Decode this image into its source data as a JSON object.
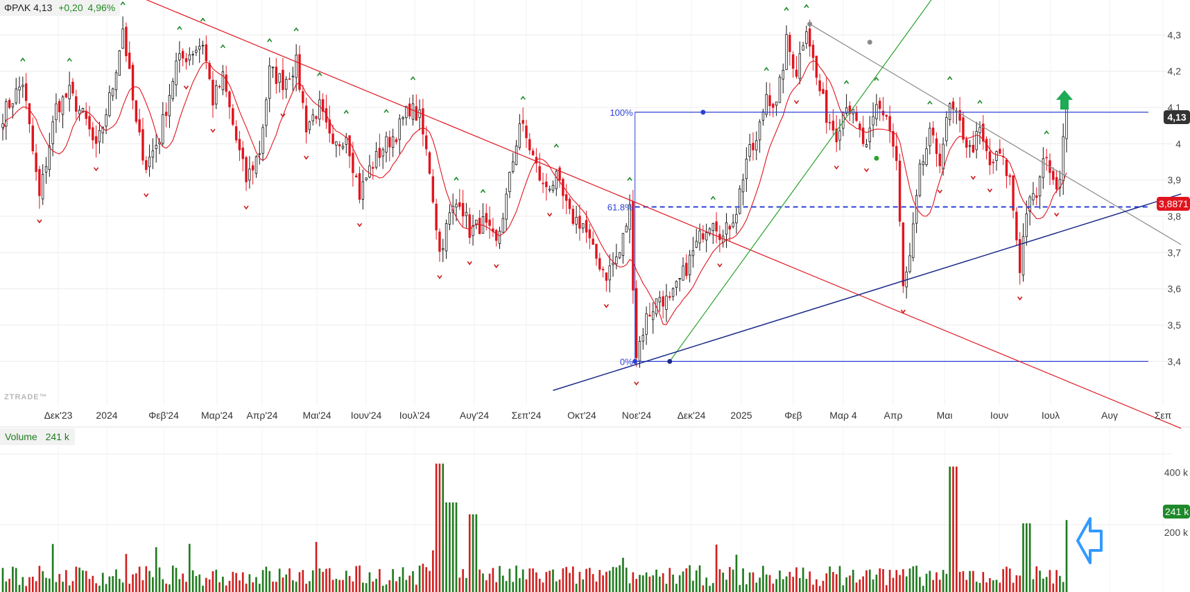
{
  "header": {
    "symbol": "ΦΡΛΚ",
    "last": "4,13",
    "change": "+0,20",
    "change_pct": "4,96%"
  },
  "watermark": "ZTRADE™",
  "volume_panel": {
    "label": "Volume",
    "value": "241 k"
  },
  "colors": {
    "up": "#111111",
    "down": "#e0141e",
    "ma": "#e0141e",
    "fib": "#2b3fd6",
    "support": "#1a2a8a",
    "downtrend": "#e0141e",
    "uptrend": "#2aa12a",
    "resistance": "#8a8a8a",
    "vol_up": "#1f7a1f",
    "vol_down": "#d21e1e",
    "arrow_up": "#1faa55",
    "arrow_hint": "#3399ff"
  },
  "chart_data": [
    {
      "type": "candlestick",
      "title": "",
      "x_tick_labels": [
        "Δεκ'23",
        "2024",
        "Φεβ'24",
        "Μαρ'24",
        "Απρ'24",
        "Μαι'24",
        "Ιουν'24",
        "Ιουλ'24",
        "Αυγ'24",
        "Σεπ'24",
        "Οκτ'24",
        "Νοε'24",
        "Δεκ'24",
        "2025",
        "Φεβ",
        "Μαρ 4",
        "Απρ",
        "Μαι",
        "Ιουν",
        "Ιουλ",
        "Αυγ",
        "Σεπ"
      ],
      "y_tick_labels": [
        "4,3",
        "4,2",
        "4,1",
        "4",
        "3,9",
        "3,8",
        "3,7",
        "3,6",
        "3,5",
        "3,4"
      ],
      "ylim": [
        3.33,
        4.36
      ],
      "price_path": [
        [
          0,
          4.08
        ],
        [
          6,
          4.17
        ],
        [
          11,
          3.85
        ],
        [
          16,
          4.1
        ],
        [
          20,
          4.14
        ],
        [
          25,
          4.06
        ],
        [
          28,
          3.98
        ],
        [
          33,
          4.16
        ],
        [
          36,
          4.32
        ],
        [
          40,
          4.05
        ],
        [
          43,
          3.94
        ],
        [
          47,
          4.02
        ],
        [
          52,
          4.22
        ],
        [
          56,
          4.25
        ],
        [
          60,
          4.28
        ],
        [
          63,
          4.12
        ],
        [
          66,
          4.18
        ],
        [
          70,
          4.01
        ],
        [
          73,
          3.9
        ],
        [
          77,
          3.98
        ],
        [
          80,
          4.2
        ],
        [
          84,
          4.17
        ],
        [
          88,
          4.22
        ],
        [
          91,
          4.05
        ],
        [
          95,
          4.1
        ],
        [
          99,
          3.98
        ],
        [
          103,
          4.03
        ],
        [
          107,
          3.86
        ],
        [
          110,
          3.93
        ],
        [
          114,
          3.99
        ],
        [
          118,
          4.03
        ],
        [
          122,
          4.1
        ],
        [
          125,
          4.07
        ],
        [
          128,
          3.93
        ],
        [
          131,
          3.7
        ],
        [
          134,
          3.8
        ],
        [
          137,
          3.85
        ],
        [
          140,
          3.76
        ],
        [
          144,
          3.78
        ],
        [
          148,
          3.72
        ],
        [
          151,
          3.85
        ],
        [
          155,
          4.06
        ],
        [
          158,
          3.99
        ],
        [
          162,
          3.88
        ],
        [
          166,
          3.9
        ],
        [
          170,
          3.8
        ],
        [
          174,
          3.78
        ],
        [
          177,
          3.7
        ],
        [
          181,
          3.64
        ],
        [
          185,
          3.7
        ],
        [
          188,
          3.82
        ],
        [
          190,
          3.42
        ],
        [
          193,
          3.52
        ],
        [
          197,
          3.58
        ],
        [
          200,
          3.56
        ],
        [
          203,
          3.62
        ],
        [
          207,
          3.7
        ],
        [
          210,
          3.76
        ],
        [
          213,
          3.8
        ],
        [
          216,
          3.74
        ],
        [
          220,
          3.82
        ],
        [
          223,
          3.96
        ],
        [
          226,
          4.0
        ],
        [
          229,
          4.14
        ],
        [
          232,
          4.1
        ],
        [
          235,
          4.28
        ],
        [
          238,
          4.2
        ],
        [
          241,
          4.33
        ],
        [
          244,
          4.18
        ],
        [
          247,
          4.08
        ],
        [
          250,
          4.03
        ],
        [
          253,
          4.12
        ],
        [
          256,
          4.05
        ],
        [
          259,
          3.98
        ],
        [
          262,
          4.1
        ],
        [
          265,
          4.08
        ],
        [
          268,
          3.95
        ],
        [
          270,
          3.6
        ],
        [
          272,
          3.68
        ],
        [
          275,
          3.92
        ],
        [
          278,
          4.02
        ],
        [
          281,
          3.96
        ],
        [
          284,
          4.1
        ],
        [
          287,
          4.05
        ],
        [
          290,
          3.98
        ],
        [
          293,
          4.03
        ],
        [
          296,
          3.94
        ],
        [
          299,
          3.97
        ],
        [
          302,
          3.9
        ],
        [
          305,
          3.66
        ],
        [
          307,
          3.82
        ],
        [
          310,
          3.86
        ],
        [
          313,
          3.98
        ],
        [
          315,
          3.88
        ],
        [
          317,
          3.92
        ],
        [
          319,
          4.13
        ]
      ],
      "moving_average": "red, ~10 period",
      "fibonacci": [
        {
          "label": "100%",
          "value": 4.087
        },
        {
          "label": "61.8%",
          "value": 3.826
        },
        {
          "label": "0%",
          "value": 3.4
        }
      ],
      "trendlines": [
        {
          "name": "downtrend",
          "from": [
            -5,
            4.58
          ],
          "to": [
            318,
            3.35
          ]
        },
        {
          "name": "resistance",
          "from": [
            242,
            4.33
          ],
          "to": [
            318,
            3.915
          ]
        },
        {
          "name": "uptrend",
          "from": [
            200,
            3.4
          ],
          "to": [
            285,
            4.48
          ]
        },
        {
          "name": "support",
          "from": [
            165,
            3.32
          ],
          "to": [
            318,
            3.76
          ]
        }
      ],
      "current_price_label": "4,13",
      "ma_value_label": "3,8871",
      "marker": "up-arrow near last bar"
    },
    {
      "type": "bar",
      "title": "",
      "series_name": "Volume",
      "y_tick_labels": [
        "400 k",
        "200 k"
      ],
      "ylim": [
        0,
        520
      ],
      "current_label": "241 k",
      "spike_heights": {
        "0.4": 380,
        "0.41": 430,
        "0.42": 300,
        "0.44": 260,
        "0.7": 300,
        "0.89": 420,
        "0.96": 230
      }
    }
  ]
}
